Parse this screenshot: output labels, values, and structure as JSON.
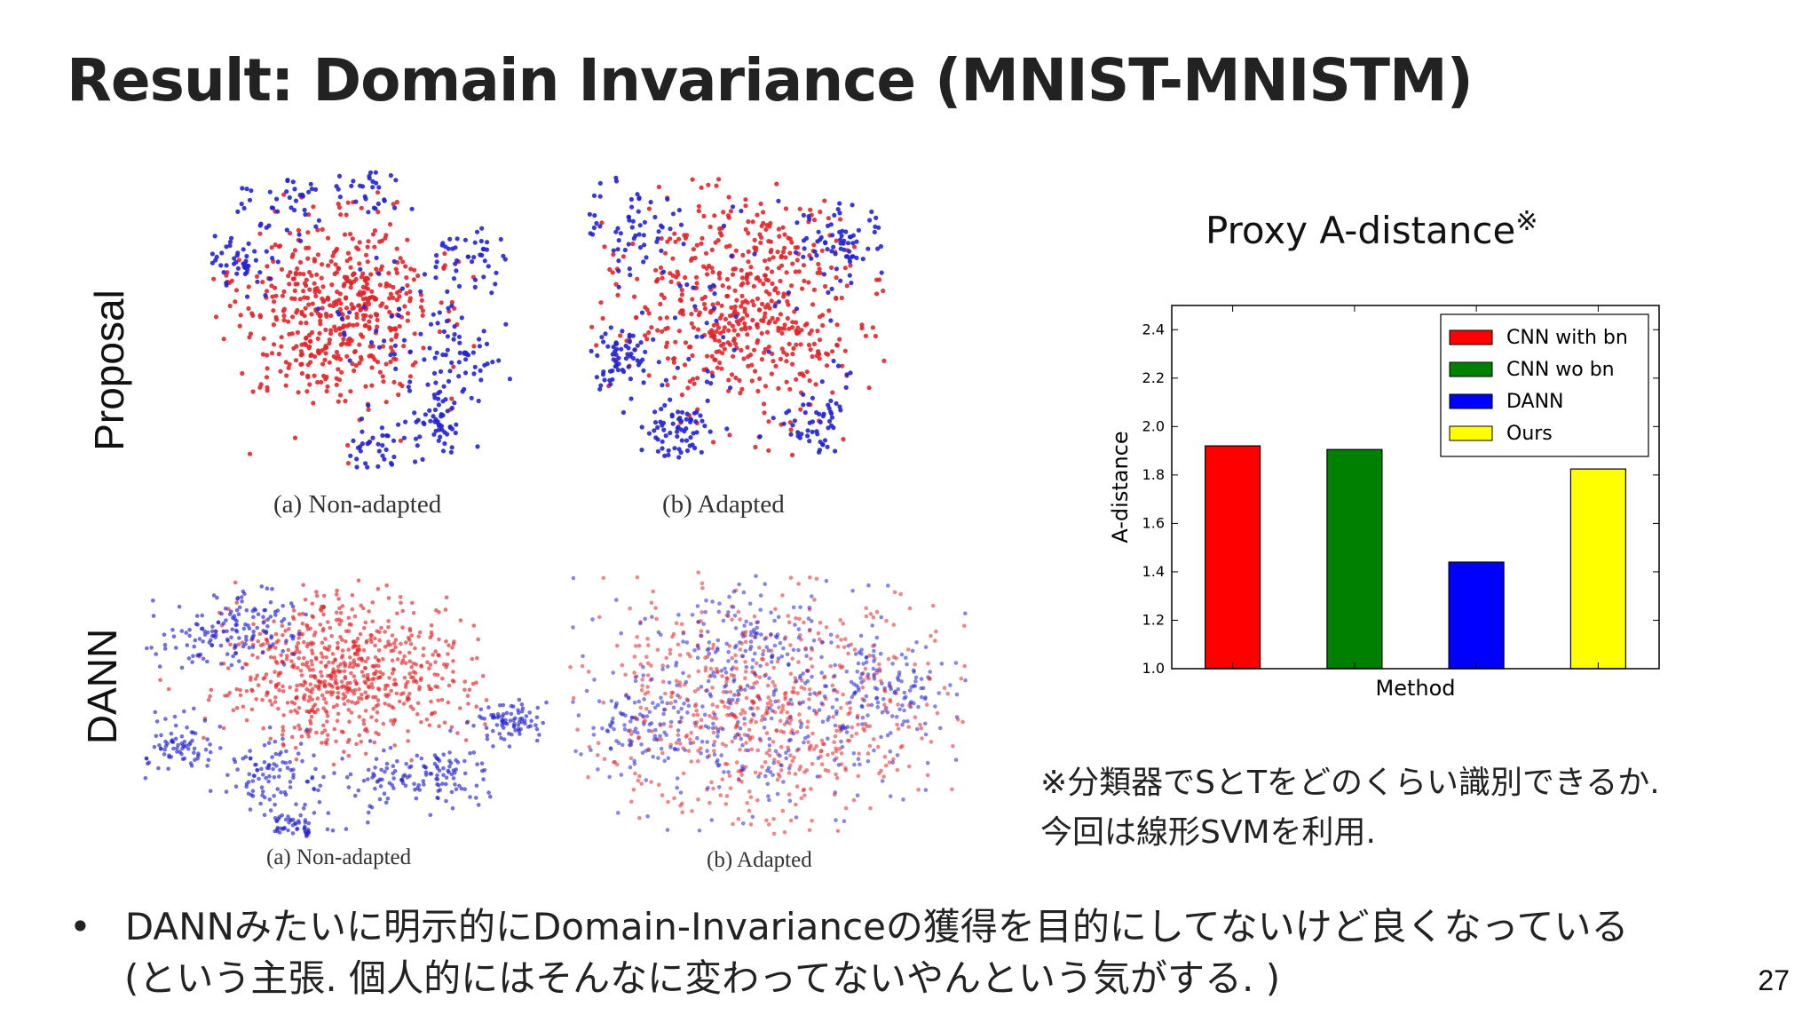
{
  "slide": {
    "title": "Result: Domain Invariance (MNIST-MNISTM)",
    "page_number": "27"
  },
  "figures": {
    "row_labels": {
      "proposal": "Proposal",
      "dann": "DANN"
    },
    "captions": {
      "proposal_a": "(a) Non-adapted",
      "proposal_b": "(b) Adapted",
      "dann_a": "(a) Non-adapted",
      "dann_b": "(b) Adapted"
    },
    "colors": {
      "source": "#e0262a",
      "target": "#2424d0"
    }
  },
  "chart_title": "Proxy A-distance",
  "chart_title_mark": "※",
  "chart_data": {
    "type": "bar",
    "categories": [
      "CNN with bn",
      "CNN wo bn",
      "DANN",
      "Ours"
    ],
    "values": [
      1.92,
      1.905,
      1.44,
      1.825
    ],
    "colors": [
      "#ff0000",
      "#008000",
      "#0000ff",
      "#ffff00"
    ],
    "xlabel": "Method",
    "ylabel": "A-distance",
    "ylim": [
      1.0,
      2.5
    ],
    "yticks": [
      "1.0",
      "1.2",
      "1.4",
      "1.6",
      "1.8",
      "2.0",
      "2.2",
      "2.4"
    ],
    "legend": {
      "entries": [
        "CNN with bn",
        "CNN wo bn",
        "DANN",
        "Ours"
      ],
      "position": "top-right"
    }
  },
  "notes": {
    "line1": "※分類器でSとTをどのくらい識別できるか.",
    "line2": "今回は線形SVMを利用."
  },
  "bullet": {
    "marker": "•",
    "line1": "DANNみたいに明示的にDomain-Invarianceの獲得を目的にしてないけど良くなっている",
    "line2": "(という主張. 個人的にはそんなに変わってないやんという気がする. )"
  }
}
